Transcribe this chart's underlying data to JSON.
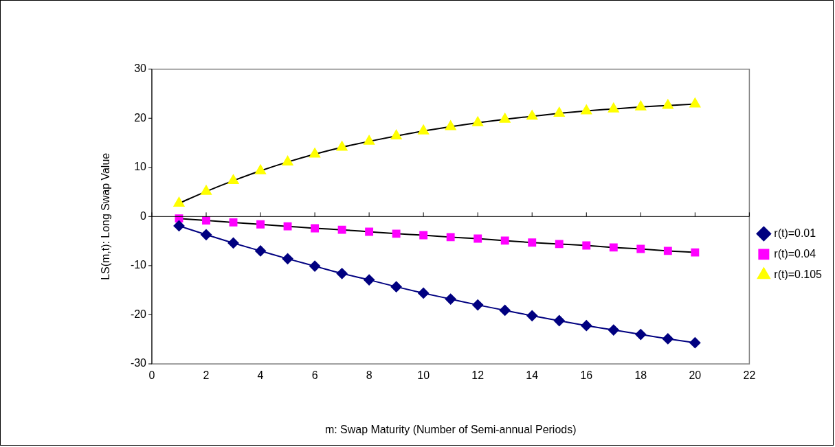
{
  "chart_data": {
    "type": "line",
    "xlabel": "m: Swap Maturity (Number of Semi-annual Periods)",
    "ylabel": "LS(m,t): Long Swap Value",
    "x": [
      1,
      2,
      3,
      4,
      5,
      6,
      7,
      8,
      9,
      10,
      11,
      12,
      13,
      14,
      15,
      16,
      17,
      18,
      19,
      20
    ],
    "series": [
      {
        "name": "r(t)=0.01",
        "color": "#000080",
        "marker": "diamond",
        "values": [
          -1.9,
          -3.7,
          -5.4,
          -7.0,
          -8.6,
          -10.1,
          -11.6,
          -12.9,
          -14.3,
          -15.6,
          -16.8,
          -18.0,
          -19.1,
          -20.2,
          -21.2,
          -22.2,
          -23.1,
          -24.0,
          -24.9,
          -25.7
        ]
      },
      {
        "name": "r(t)=0.04",
        "color": "#ff00ff",
        "marker": "square",
        "values": [
          -0.4,
          -0.8,
          -1.2,
          -1.6,
          -2.0,
          -2.4,
          -2.7,
          -3.1,
          -3.5,
          -3.8,
          -4.2,
          -4.5,
          -4.9,
          -5.3,
          -5.6,
          -5.9,
          -6.3,
          -6.6,
          -7.0,
          -7.3
        ]
      },
      {
        "name": "r(t)=0.105",
        "color": "#ffff00",
        "marker": "triangle",
        "values": [
          2.7,
          5.1,
          7.3,
          9.3,
          11.1,
          12.7,
          14.1,
          15.3,
          16.4,
          17.4,
          18.3,
          19.1,
          19.8,
          20.4,
          21.0,
          21.5,
          21.9,
          22.3,
          22.6,
          22.9
        ]
      }
    ],
    "xlim": [
      0,
      22
    ],
    "xticks": [
      0,
      2,
      4,
      6,
      8,
      10,
      12,
      14,
      16,
      18,
      20,
      22
    ],
    "ylim": [
      -30,
      30
    ],
    "yticks": [
      -30,
      -20,
      -10,
      0,
      10,
      20,
      30
    ],
    "ref_lines": [
      {
        "axis": "y",
        "value": 0,
        "color": "#000000"
      }
    ],
    "grid": false,
    "legend": "right",
    "line_style": "solid"
  }
}
